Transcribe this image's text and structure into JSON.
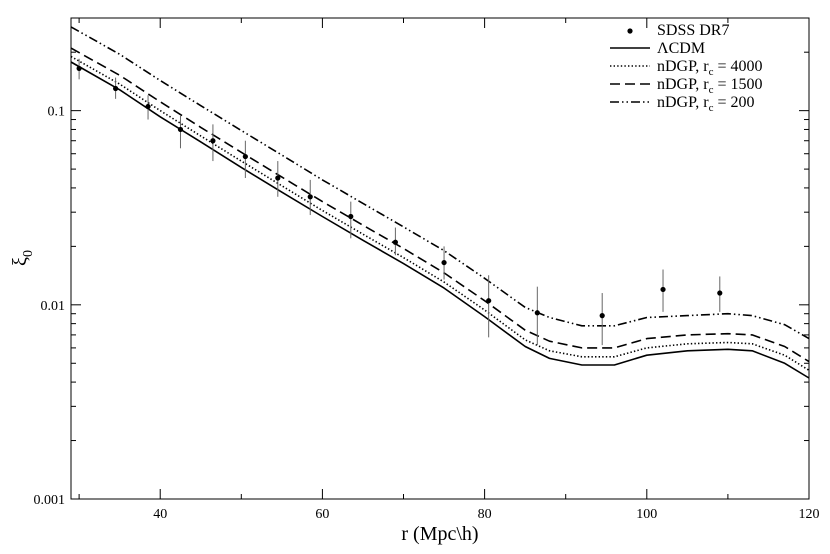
{
  "chart_data": {
    "type": "line",
    "title": "",
    "xlabel": "r (Mpc\\h)",
    "ylabel_main": "ξ",
    "ylabel_sub": "0",
    "x_scale": "linear",
    "y_scale": "log",
    "xlim": [
      29,
      120
    ],
    "ylim": [
      0.001,
      0.3
    ],
    "x_ticks": [
      40,
      60,
      80,
      100,
      120
    ],
    "y_ticks": [
      0.001,
      0.01,
      0.1
    ],
    "x_tick_labels": [
      "40",
      "60",
      "80",
      "100",
      "120"
    ],
    "y_tick_labels": [
      "0.001",
      "0.01",
      "0.1"
    ],
    "grid": false,
    "legend_position": "top-right",
    "points": {
      "name": "SDSS DR7",
      "x": [
        30,
        34.5,
        38.5,
        42.5,
        46.5,
        50.5,
        54.5,
        58.5,
        63.5,
        69,
        75,
        80.5,
        86.5,
        94.5,
        102,
        109
      ],
      "y": [
        0.165,
        0.13,
        0.105,
        0.08,
        0.07,
        0.058,
        0.045,
        0.036,
        0.0285,
        0.021,
        0.0165,
        0.0105,
        0.0091,
        0.0088,
        0.012,
        0.0115
      ],
      "err_low": [
        0.145,
        0.115,
        0.09,
        0.064,
        0.055,
        0.045,
        0.036,
        0.029,
        0.022,
        0.018,
        0.0135,
        0.0068,
        0.0062,
        0.0062,
        0.0092,
        0.0092
      ],
      "err_high": [
        0.185,
        0.148,
        0.12,
        0.095,
        0.085,
        0.07,
        0.055,
        0.044,
        0.034,
        0.025,
        0.02,
        0.0142,
        0.0124,
        0.0115,
        0.0152,
        0.014
      ]
    },
    "series": [
      {
        "name": "ΛCDM",
        "style": "solid",
        "x": [
          29,
          35,
          40,
          45,
          50,
          55,
          60,
          65,
          70,
          75,
          80,
          85,
          88,
          92,
          96,
          100,
          105,
          110,
          113,
          117,
          120
        ],
        "y": [
          0.178,
          0.128,
          0.093,
          0.069,
          0.051,
          0.038,
          0.0285,
          0.0215,
          0.0163,
          0.0122,
          0.0087,
          0.0061,
          0.0053,
          0.0049,
          0.0049,
          0.0055,
          0.0058,
          0.0059,
          0.0058,
          0.005,
          0.0042
        ]
      },
      {
        "name": "nDGP, r",
        "name_sub": "c",
        "name_suffix": " = 4000",
        "style": "dotted",
        "x": [
          29,
          35,
          40,
          45,
          50,
          55,
          60,
          65,
          70,
          75,
          80,
          85,
          88,
          92,
          96,
          100,
          105,
          110,
          113,
          117,
          120
        ],
        "y": [
          0.19,
          0.137,
          0.1,
          0.074,
          0.055,
          0.041,
          0.0306,
          0.0231,
          0.0175,
          0.0131,
          0.0094,
          0.0066,
          0.0058,
          0.0054,
          0.0054,
          0.006,
          0.0063,
          0.0064,
          0.0063,
          0.0055,
          0.0046
        ]
      },
      {
        "name": "nDGP, r",
        "name_sub": "c",
        "name_suffix": " = 1500",
        "style": "dashed",
        "x": [
          29,
          35,
          40,
          45,
          50,
          55,
          60,
          65,
          70,
          75,
          80,
          85,
          88,
          92,
          96,
          100,
          105,
          110,
          113,
          117,
          120
        ],
        "y": [
          0.21,
          0.152,
          0.111,
          0.082,
          0.061,
          0.0455,
          0.034,
          0.0257,
          0.0195,
          0.0146,
          0.0105,
          0.0074,
          0.0065,
          0.006,
          0.006,
          0.0067,
          0.007,
          0.0071,
          0.007,
          0.0061,
          0.0051
        ]
      },
      {
        "name": "nDGP, r",
        "name_sub": "c",
        "name_suffix": " = 200",
        "style": "dashdotdot",
        "x": [
          29,
          35,
          40,
          45,
          50,
          55,
          60,
          65,
          70,
          75,
          80,
          85,
          88,
          92,
          96,
          100,
          105,
          110,
          113,
          117,
          120
        ],
        "y": [
          0.27,
          0.195,
          0.143,
          0.106,
          0.079,
          0.059,
          0.044,
          0.0333,
          0.0252,
          0.019,
          0.0137,
          0.0097,
          0.0086,
          0.0078,
          0.0078,
          0.0086,
          0.0088,
          0.009,
          0.0088,
          0.0079,
          0.0067
        ]
      }
    ]
  },
  "colors": {
    "ink": "#000000",
    "background": "#ffffff"
  }
}
